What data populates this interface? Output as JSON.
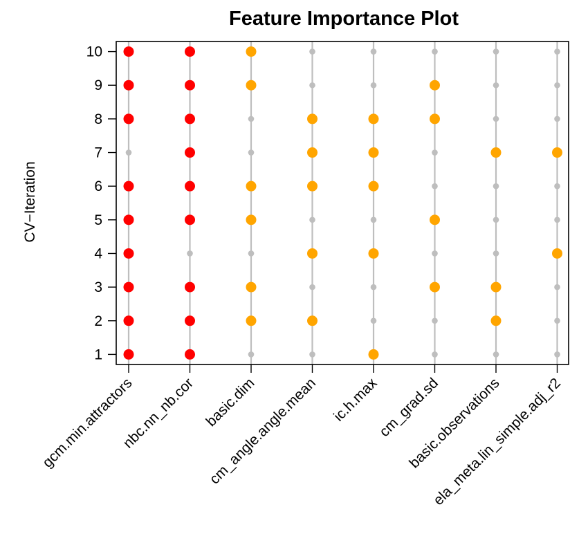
{
  "chart_data": {
    "type": "scatter",
    "title": "Feature Importance Plot",
    "xlabel": "",
    "ylabel": "CV−Iteration",
    "categories": [
      "gcm.min.attractors",
      "nbc.nn_nb.cor",
      "basic.dim",
      "cm_angle.angle.mean",
      "ic.h.max",
      "cm_grad.sd",
      "basic.observations",
      "ela_meta.lin_simple.adj_r2"
    ],
    "y_ticks": [
      1,
      2,
      3,
      4,
      5,
      6,
      7,
      8,
      9,
      10
    ],
    "ylim": [
      0.7,
      10.3
    ],
    "grid": false,
    "legend": "none",
    "colors": {
      "all_iterations": "#ff0000",
      "selected": "#ffa500",
      "not_selected": "#bebebe",
      "guide_line": "#bebebe"
    },
    "selected_iterations": [
      [
        1,
        2,
        3,
        4,
        5,
        6,
        8,
        9,
        10
      ],
      [
        1,
        2,
        3,
        5,
        6,
        7,
        8,
        9,
        10
      ],
      [
        2,
        3,
        5,
        6,
        9,
        10
      ],
      [
        2,
        4,
        6,
        7,
        8
      ],
      [
        1,
        4,
        6,
        7,
        8
      ],
      [
        3,
        5,
        8,
        9
      ],
      [
        2,
        3,
        7
      ],
      [
        4,
        7
      ]
    ],
    "highlight_red": [
      true,
      true,
      false,
      false,
      false,
      false,
      false,
      false
    ]
  }
}
